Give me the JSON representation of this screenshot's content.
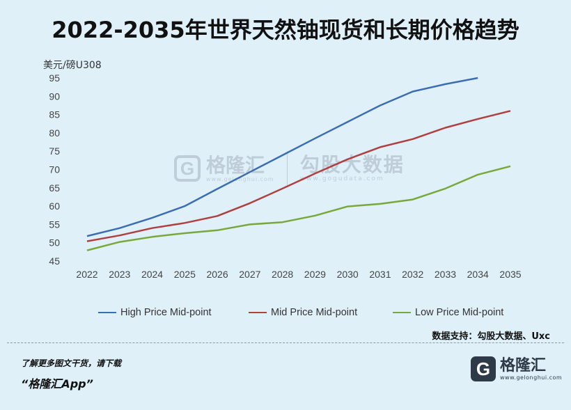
{
  "header": {
    "title": "2022-2035年世界天然铀现货和长期价格趋势"
  },
  "axis": {
    "y_unit": "美元/磅U308"
  },
  "watermark": {
    "brand": "格隆汇",
    "brand_url": "www.gelonghui.com",
    "partner": "勾股大数据",
    "partner_url": "www.gogudata.com"
  },
  "source": "数据支持：勾股大数据、Uxc",
  "footer": {
    "tip": "了解更多图文干货，请下载",
    "app": "“格隆汇App”"
  },
  "logo": {
    "name": "格隆汇",
    "url": "www.gelonghui.com"
  },
  "colors": {
    "background": "#dff0f9",
    "high": "#3b6db3",
    "mid": "#b04040",
    "low": "#79a83a"
  },
  "chart_data": {
    "type": "line",
    "title": "2022-2035年世界天然铀现货和长期价格趋势",
    "ylabel": "美元/磅U308",
    "xlabel": "",
    "x": [
      "2022",
      "2023",
      "2024",
      "2025",
      "2026",
      "2027",
      "2028",
      "2029",
      "2030",
      "2031",
      "2032",
      "2033",
      "2034",
      "2035"
    ],
    "yticks": [
      45,
      50,
      55,
      60,
      65,
      70,
      75,
      80,
      85,
      90,
      95
    ],
    "ylim": [
      45,
      95
    ],
    "grid": false,
    "legend_position": "bottom",
    "series": [
      {
        "name": "High Price Mid-point",
        "color": "#3b6db3",
        "values": [
          51.8,
          54.0,
          56.8,
          60.0,
          64.7,
          69.3,
          73.9,
          78.5,
          83.0,
          87.5,
          91.3,
          93.3,
          95.0,
          null
        ]
      },
      {
        "name": "Mid Price Mid-point",
        "color": "#b04040",
        "values": [
          50.4,
          52.0,
          54.0,
          55.4,
          57.3,
          60.8,
          64.8,
          68.9,
          72.8,
          76.1,
          78.3,
          81.4,
          83.8,
          86.0
        ]
      },
      {
        "name": "Low Price Mid-point",
        "color": "#79a83a",
        "values": [
          47.9,
          50.2,
          51.6,
          52.6,
          53.4,
          55.0,
          55.6,
          57.4,
          59.9,
          60.6,
          61.8,
          64.8,
          68.6,
          70.9
        ]
      }
    ]
  }
}
